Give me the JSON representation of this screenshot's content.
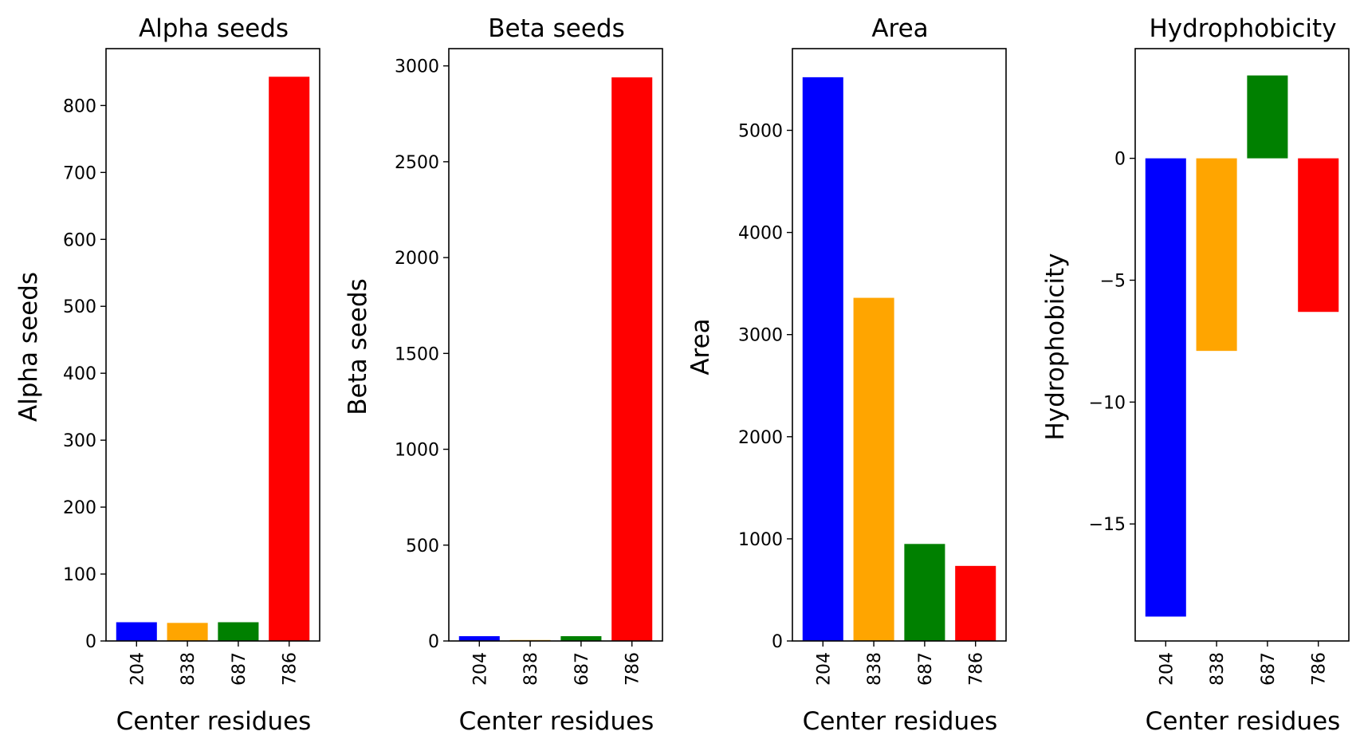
{
  "chart_data": [
    {
      "type": "bar",
      "title": "Alpha seeds",
      "xlabel": "Center residues",
      "ylabel": "Alpha seeds",
      "categories": [
        "204",
        "838",
        "687",
        "786"
      ],
      "values": [
        28,
        27,
        28,
        843
      ],
      "colors": [
        "#0000ff",
        "#ffa500",
        "#008000",
        "#ff0000"
      ],
      "ylim": [
        0,
        885
      ],
      "yticks": [
        0,
        100,
        200,
        300,
        400,
        500,
        600,
        700,
        800
      ],
      "ytick_labels": [
        "0",
        "100",
        "200",
        "300",
        "400",
        "500",
        "600",
        "700",
        "800"
      ],
      "grid": false
    },
    {
      "type": "bar",
      "title": "Beta seeds",
      "xlabel": "Center residues",
      "ylabel": "Beta seeds",
      "categories": [
        "204",
        "838",
        "687",
        "786"
      ],
      "values": [
        25,
        5,
        25,
        2940
      ],
      "colors": [
        "#0000ff",
        "#ffa500",
        "#008000",
        "#ff0000"
      ],
      "ylim": [
        0,
        3090
      ],
      "yticks": [
        0,
        500,
        1000,
        1500,
        2000,
        2500,
        3000
      ],
      "ytick_labels": [
        "0",
        "500",
        "1000",
        "1500",
        "2000",
        "2500",
        "3000"
      ],
      "grid": false
    },
    {
      "type": "bar",
      "title": "Area",
      "xlabel": "Center residues",
      "ylabel": "Area",
      "categories": [
        "204",
        "838",
        "687",
        "786"
      ],
      "values": [
        5520,
        3360,
        950,
        735
      ],
      "colors": [
        "#0000ff",
        "#ffa500",
        "#008000",
        "#ff0000"
      ],
      "ylim": [
        0,
        5800
      ],
      "yticks": [
        0,
        1000,
        2000,
        3000,
        4000,
        5000
      ],
      "ytick_labels": [
        "0",
        "1000",
        "2000",
        "3000",
        "4000",
        "5000"
      ],
      "grid": false
    },
    {
      "type": "bar",
      "title": "Hydrophobicity",
      "xlabel": "Center residues",
      "ylabel": "Hydrophobicity",
      "categories": [
        "204",
        "838",
        "687",
        "786"
      ],
      "values": [
        -18.8,
        -7.9,
        3.4,
        -6.3
      ],
      "colors": [
        "#0000ff",
        "#ffa500",
        "#008000",
        "#ff0000"
      ],
      "ylim": [
        -19.8,
        4.5
      ],
      "yticks": [
        -15,
        -10,
        -5,
        0
      ],
      "ytick_labels": [
        "−15",
        "−10",
        "−5",
        "0"
      ],
      "grid": false
    }
  ]
}
